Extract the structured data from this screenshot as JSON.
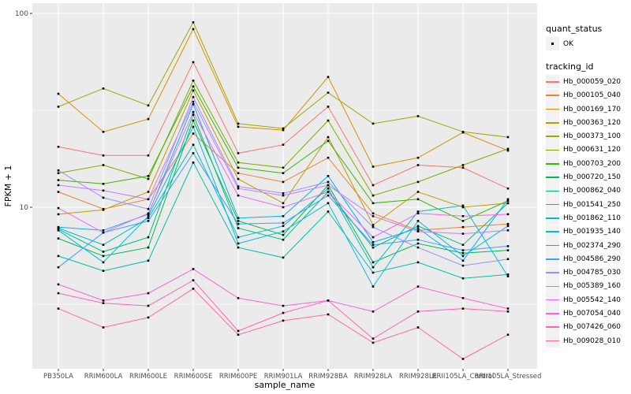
{
  "chart_data": {
    "type": "line",
    "xlabel": "sample_name",
    "ylabel": "FPKM + 1",
    "y_scale": "log10",
    "ylim": [
      1.45,
      111
    ],
    "grid": true,
    "y_ticks": [
      100,
      10
    ],
    "y_tick_labels": [
      "100",
      "10"
    ],
    "y_minor_gridlines": [
      31.62,
      3.162
    ],
    "x_categories": [
      "PB350LA",
      "RRIM600LA",
      "RRIM600LE",
      "RRIM600SE",
      "RRIM600PE",
      "RRIM901LA",
      "RRIM928BA",
      "RRIM928LA",
      "RRIM928LE",
      "RRII105LA_Control",
      "RRII105LA_Stressed"
    ],
    "legend": {
      "position": "right",
      "quant_status_title": "quant_status",
      "quant_status_items": [
        {
          "label": "OK",
          "marker": "black-square"
        }
      ],
      "tracking_id_title": "tracking_id"
    },
    "series": [
      {
        "name": "Hb_000059_020",
        "color": "#F8766D",
        "values": [
          20.5,
          18.5,
          18.5,
          56,
          19,
          21,
          33,
          13,
          16.5,
          16,
          12.5
        ]
      },
      {
        "name": "Hb_000105_040",
        "color": "#EA8331",
        "values": [
          12,
          9.8,
          11,
          24,
          15,
          13.5,
          18,
          9.3,
          7.6,
          7.9,
          8.2
        ]
      },
      {
        "name": "Hb_000169_170",
        "color": "#D89000",
        "values": [
          38.5,
          24.5,
          28.5,
          83,
          26,
          25,
          47,
          16.2,
          18,
          24.3,
          19.6
        ]
      },
      {
        "name": "Hb_000363_120",
        "color": "#C09B00",
        "values": [
          9.2,
          9.7,
          12,
          40,
          14,
          10.5,
          23,
          8.1,
          12,
          10,
          10.5
        ]
      },
      {
        "name": "Hb_000373_100",
        "color": "#A3A500",
        "values": [
          33,
          41,
          33.5,
          90,
          27,
          25.5,
          39,
          27,
          29.5,
          24.5,
          23
        ]
      },
      {
        "name": "Hb_000631_120",
        "color": "#7CAE00",
        "values": [
          15,
          16.5,
          14,
          45,
          17,
          16,
          28,
          11.5,
          13.5,
          16.5,
          20
        ]
      },
      {
        "name": "Hb_000703_200",
        "color": "#39B600",
        "values": [
          13.8,
          13.2,
          14.5,
          42,
          16,
          15,
          22,
          10.5,
          11,
          8.5,
          10.8
        ]
      },
      {
        "name": "Hb_000720_150",
        "color": "#00BB4E",
        "values": [
          6.9,
          5.6,
          6.2,
          28,
          8.5,
          7.2,
          13,
          5.2,
          6.5,
          5.8,
          6
        ]
      },
      {
        "name": "Hb_000862_040",
        "color": "#00BF7D",
        "values": [
          7.7,
          5.9,
          7,
          30,
          7.8,
          6.8,
          12,
          6.2,
          8,
          6.4,
          10.5
        ]
      },
      {
        "name": "Hb_001541_250",
        "color": "#00C1A3",
        "values": [
          5.6,
          4.7,
          5.3,
          17,
          6.2,
          5.5,
          9.5,
          4.6,
          5.2,
          4.3,
          4.5
        ]
      },
      {
        "name": "Hb_001862_110",
        "color": "#00BFC4",
        "values": [
          7.8,
          6.4,
          8.8,
          21,
          7,
          8,
          12.5,
          4.9,
          9.5,
          10.2,
          4.4
        ]
      },
      {
        "name": "Hb_001935_140",
        "color": "#00BAE0",
        "values": [
          7.6,
          5.2,
          9,
          26,
          6.5,
          7.5,
          10.5,
          3.9,
          8.5,
          5.6,
          8
        ]
      },
      {
        "name": "Hb_002374_290",
        "color": "#00B0F6",
        "values": [
          7.9,
          7.6,
          9.2,
          34,
          8.8,
          9,
          14.5,
          6.6,
          7.8,
          5.3,
          11
        ]
      },
      {
        "name": "Hb_004586_290",
        "color": "#35A2FF",
        "values": [
          4.9,
          7.4,
          8.5,
          19,
          8.2,
          8.3,
          11.5,
          6.4,
          6.8,
          6,
          6.3
        ]
      },
      {
        "name": "Hb_004785_030",
        "color": "#9590FF",
        "values": [
          15.5,
          11.2,
          9.8,
          37,
          12.8,
          11.8,
          13.5,
          7.9,
          6.2,
          5,
          5.4
        ]
      },
      {
        "name": "Hb_005389_160",
        "color": "#C77CFF",
        "values": [
          13,
          12.2,
          11,
          35,
          12.5,
          11.5,
          13,
          9,
          7.5,
          7.3,
          7.6
        ]
      },
      {
        "name": "Hb_005542_140",
        "color": "#E76BF3",
        "values": [
          9.9,
          7.4,
          9.3,
          31,
          11.5,
          10,
          12,
          7,
          9.3,
          9,
          9.2
        ]
      },
      {
        "name": "Hb_007054_040",
        "color": "#FA62DB",
        "values": [
          4,
          3.3,
          3.6,
          4.8,
          3.4,
          3.1,
          3.3,
          2.9,
          3.9,
          3.4,
          3
        ]
      },
      {
        "name": "Hb_007426_060",
        "color": "#FF62BC",
        "values": [
          3.6,
          3.2,
          3.1,
          4.2,
          2.3,
          2.85,
          3.3,
          2.1,
          2.9,
          3,
          2.9
        ]
      },
      {
        "name": "Hb_009028_010",
        "color": "#FF6A98",
        "values": [
          3,
          2.4,
          2.7,
          3.8,
          2.2,
          2.6,
          2.8,
          2,
          2.4,
          1.65,
          2.2
        ]
      }
    ]
  },
  "style": {
    "panel_bg": "#EBEBEB",
    "gridline": "#FFFFFF",
    "axis_text": "#4D4D4D",
    "tick_mark": "#333333",
    "point_color": "#000000",
    "legend_key_bg": "#F2F2F2"
  }
}
